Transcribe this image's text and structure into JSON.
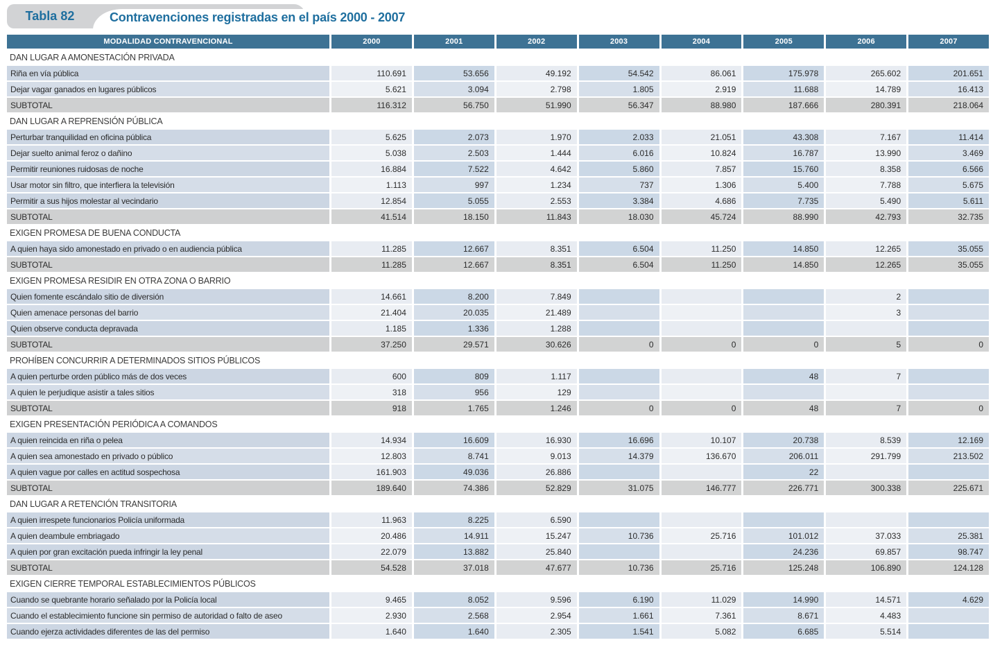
{
  "header": {
    "badge_label": "Tabla 82",
    "title": "Contravenciones registradas en el país 2000 - 2007"
  },
  "colors": {
    "header_bar": "#3d7294",
    "title_blue": "#1f6f9f",
    "badge_gray": "#d2d3d5",
    "subtotal_gray": "#d2d3d3",
    "row_blue_dark": "#cbd8e6",
    "row_blue_light": "#e8ecf2"
  },
  "table": {
    "label_header": "MODALIDAD CONTRAVENCIONAL",
    "year_headers": [
      "2000",
      "2001",
      "2002",
      "2003",
      "2004",
      "2005",
      "2006",
      "2007"
    ],
    "subtotal_label": "SUBTOTAL",
    "sections": [
      {
        "title": "DAN LUGAR A AMONESTACIÓN PRIVADA",
        "rows": [
          {
            "label": "Riña en vía pública",
            "values": [
              "110.691",
              "53.656",
              "49.192",
              "54.542",
              "86.061",
              "175.978",
              "265.602",
              "201.651"
            ]
          },
          {
            "label": "Dejar vagar ganados en lugares públicos",
            "values": [
              "5.621",
              "3.094",
              "2.798",
              "1.805",
              "2.919",
              "11.688",
              "14.789",
              "16.413"
            ]
          }
        ],
        "subtotal": {
          "label": "SUBTOTAL",
          "values": [
            "116.312",
            "56.750",
            "51.990",
            "56.347",
            "88.980",
            "187.666",
            "280.391",
            "218.064"
          ]
        }
      },
      {
        "title": "DAN LUGAR A REPRENSIÓN PÚBLICA",
        "rows": [
          {
            "label": "Perturbar tranquilidad en oficina pública",
            "values": [
              "5.625",
              "2.073",
              "1.970",
              "2.033",
              "21.051",
              "43.308",
              "7.167",
              "11.414"
            ]
          },
          {
            "label": "Dejar suelto animal feroz o dañino",
            "values": [
              "5.038",
              "2.503",
              "1.444",
              "6.016",
              "10.824",
              "16.787",
              "13.990",
              "3.469"
            ]
          },
          {
            "label": "Permitir reuniones ruidosas de noche",
            "values": [
              "16.884",
              "7.522",
              "4.642",
              "5.860",
              "7.857",
              "15.760",
              "8.358",
              "6.566"
            ]
          },
          {
            "label": "Usar motor sin filtro, que interfiera la televisión",
            "values": [
              "1.113",
              "997",
              "1.234",
              "737",
              "1.306",
              "5.400",
              "7.788",
              "5.675"
            ]
          },
          {
            "label": "Permitir a sus hijos molestar al vecindario",
            "values": [
              "12.854",
              "5.055",
              "2.553",
              "3.384",
              "4.686",
              "7.735",
              "5.490",
              "5.611"
            ]
          }
        ],
        "subtotal": {
          "label": "SUBTOTAL",
          "values": [
            "41.514",
            "18.150",
            "11.843",
            "18.030",
            "45.724",
            "88.990",
            "42.793",
            "32.735"
          ]
        }
      },
      {
        "title": "EXIGEN PROMESA DE BUENA CONDUCTA",
        "rows": [
          {
            "label": "A quien haya sido amonestado en privado o en audiencia pública",
            "values": [
              "11.285",
              "12.667",
              "8.351",
              "6.504",
              "11.250",
              "14.850",
              "12.265",
              "35.055"
            ]
          }
        ],
        "subtotal": {
          "label": "SUBTOTAL",
          "values": [
            "11.285",
            "12.667",
            "8.351",
            "6.504",
            "11.250",
            "14.850",
            "12.265",
            "35.055"
          ]
        }
      },
      {
        "title": "EXIGEN PROMESA RESIDIR EN OTRA ZONA O BARRIO",
        "rows": [
          {
            "label": "Quien fomente escándalo sitio de diversión",
            "values": [
              "14.661",
              "8.200",
              "7.849",
              "",
              "",
              "",
              "2",
              ""
            ]
          },
          {
            "label": "Quien amenace personas del barrio",
            "values": [
              "21.404",
              "20.035",
              "21.489",
              "",
              "",
              "",
              "3",
              ""
            ]
          },
          {
            "label": "Quien observe conducta depravada",
            "values": [
              "1.185",
              "1.336",
              "1.288",
              "",
              "",
              "",
              "",
              ""
            ]
          }
        ],
        "subtotal": {
          "label": "SUBTOTAL",
          "values": [
            "37.250",
            "29.571",
            "30.626",
            "0",
            "0",
            "0",
            "5",
            "0"
          ]
        }
      },
      {
        "title": "PROHÍBEN CONCURRIR A DETERMINADOS SITIOS PÚBLICOS",
        "rows": [
          {
            "label": "A quien perturbe orden público más de dos veces",
            "values": [
              "600",
              "809",
              "1.117",
              "",
              "",
              "48",
              "7",
              ""
            ]
          },
          {
            "label": "A quien le perjudique asistir a tales sitios",
            "values": [
              "318",
              "956",
              "129",
              "",
              "",
              "",
              "",
              ""
            ]
          }
        ],
        "subtotal": {
          "label": "SUBTOTAL",
          "values": [
            "918",
            "1.765",
            "1.246",
            "0",
            "0",
            "48",
            "7",
            "0"
          ]
        }
      },
      {
        "title": "EXIGEN PRESENTACIÓN PERIÓDICA A COMANDOS",
        "rows": [
          {
            "label": "A quien reincida en riña o pelea",
            "values": [
              "14.934",
              "16.609",
              "16.930",
              "16.696",
              "10.107",
              "20.738",
              "8.539",
              "12.169"
            ]
          },
          {
            "label": "A quien sea amonestado en privado o público",
            "values": [
              "12.803",
              "8.741",
              "9.013",
              "14.379",
              "136.670",
              "206.011",
              "291.799",
              "213.502"
            ]
          },
          {
            "label": "A quien vague por calles en actitud sospechosa",
            "values": [
              "161.903",
              "49.036",
              "26.886",
              "",
              "",
              "22",
              "",
              ""
            ]
          }
        ],
        "subtotal": {
          "label": "SUBTOTAL",
          "values": [
            "189.640",
            "74.386",
            "52.829",
            "31.075",
            "146.777",
            "226.771",
            "300.338",
            "225.671"
          ]
        }
      },
      {
        "title": "DAN LUGAR A RETENCIÓN TRANSITORIA",
        "rows": [
          {
            "label": "A quien irrespete funcionarios Policía uniformada",
            "values": [
              "11.963",
              "8.225",
              "6.590",
              "",
              "",
              "",
              "",
              ""
            ]
          },
          {
            "label": "A quien deambule embriagado",
            "values": [
              "20.486",
              "14.911",
              "15.247",
              "10.736",
              "25.716",
              "101.012",
              "37.033",
              "25.381"
            ]
          },
          {
            "label": "A quien por gran excitación pueda infringir la ley penal",
            "values": [
              "22.079",
              "13.882",
              "25.840",
              "",
              "",
              "24.236",
              "69.857",
              "98.747"
            ]
          }
        ],
        "subtotal": {
          "label": "SUBTOTAL",
          "values": [
            "54.528",
            "37.018",
            "47.677",
            "10.736",
            "25.716",
            "125.248",
            "106.890",
            "124.128"
          ]
        }
      },
      {
        "title": "EXIGEN CIERRE TEMPORAL ESTABLECIMIENTOS PÚBLICOS",
        "rows": [
          {
            "label": "Cuando se quebrante horario señalado por la Policía local",
            "values": [
              "9.465",
              "8.052",
              "9.596",
              "6.190",
              "11.029",
              "14.990",
              "14.571",
              "4.629"
            ]
          },
          {
            "label": "Cuando el establecimiento funcione sin permiso de autoridad o falto de aseo",
            "values": [
              "2.930",
              "2.568",
              "2.954",
              "1.661",
              "7.361",
              "8.671",
              "4.483",
              ""
            ]
          },
          {
            "label": "Cuando ejerza actividades diferentes de las del permiso",
            "values": [
              "1.640",
              "1.640",
              "2.305",
              "1.541",
              "5.082",
              "6.685",
              "5.514",
              ""
            ]
          }
        ],
        "subtotal": null
      }
    ]
  }
}
